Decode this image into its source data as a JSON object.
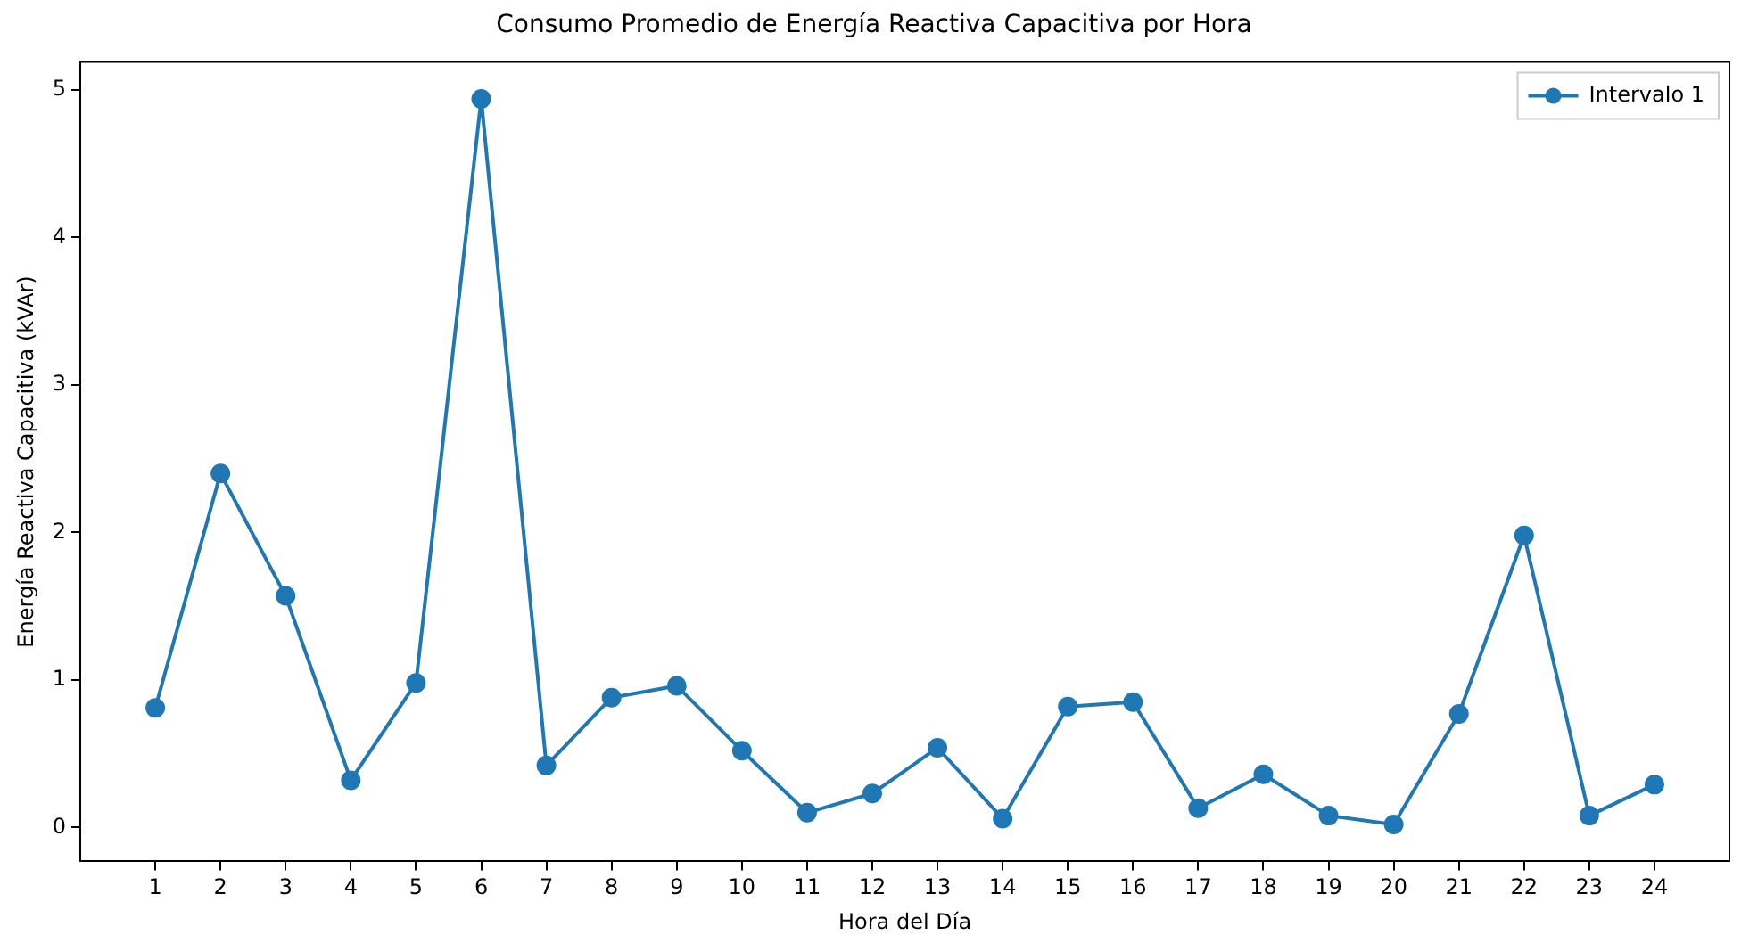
{
  "chart_data": {
    "type": "line",
    "title": "Consumo Promedio de Energía Reactiva Capacitiva por Hora",
    "xlabel": "Hora del Día",
    "ylabel": "Energía Reactiva Capacitiva (kVAr)",
    "x": [
      1,
      2,
      3,
      4,
      5,
      6,
      7,
      8,
      9,
      10,
      11,
      12,
      13,
      14,
      15,
      16,
      17,
      18,
      19,
      20,
      21,
      22,
      23,
      24
    ],
    "series": [
      {
        "name": "Intervalo 1",
        "color": "#1f77b4",
        "values": [
          0.81,
          2.4,
          1.57,
          0.32,
          0.98,
          4.94,
          0.42,
          0.88,
          0.96,
          0.52,
          0.1,
          0.23,
          0.54,
          0.06,
          0.82,
          0.85,
          0.13,
          0.36,
          0.08,
          0.02,
          0.77,
          1.98,
          0.08,
          0.29
        ]
      }
    ],
    "xlim": [
      -0.15,
      25.15
    ],
    "xticks": [
      1,
      2,
      3,
      4,
      5,
      6,
      7,
      8,
      9,
      10,
      11,
      12,
      13,
      14,
      15,
      16,
      17,
      18,
      19,
      20,
      21,
      22,
      23,
      24
    ],
    "ylim": [
      -0.23,
      5.19
    ],
    "yticks": [
      0,
      1,
      2,
      3,
      4,
      5
    ],
    "grid": false,
    "legend": "top right",
    "marker": "circle",
    "line_style": "solid"
  }
}
